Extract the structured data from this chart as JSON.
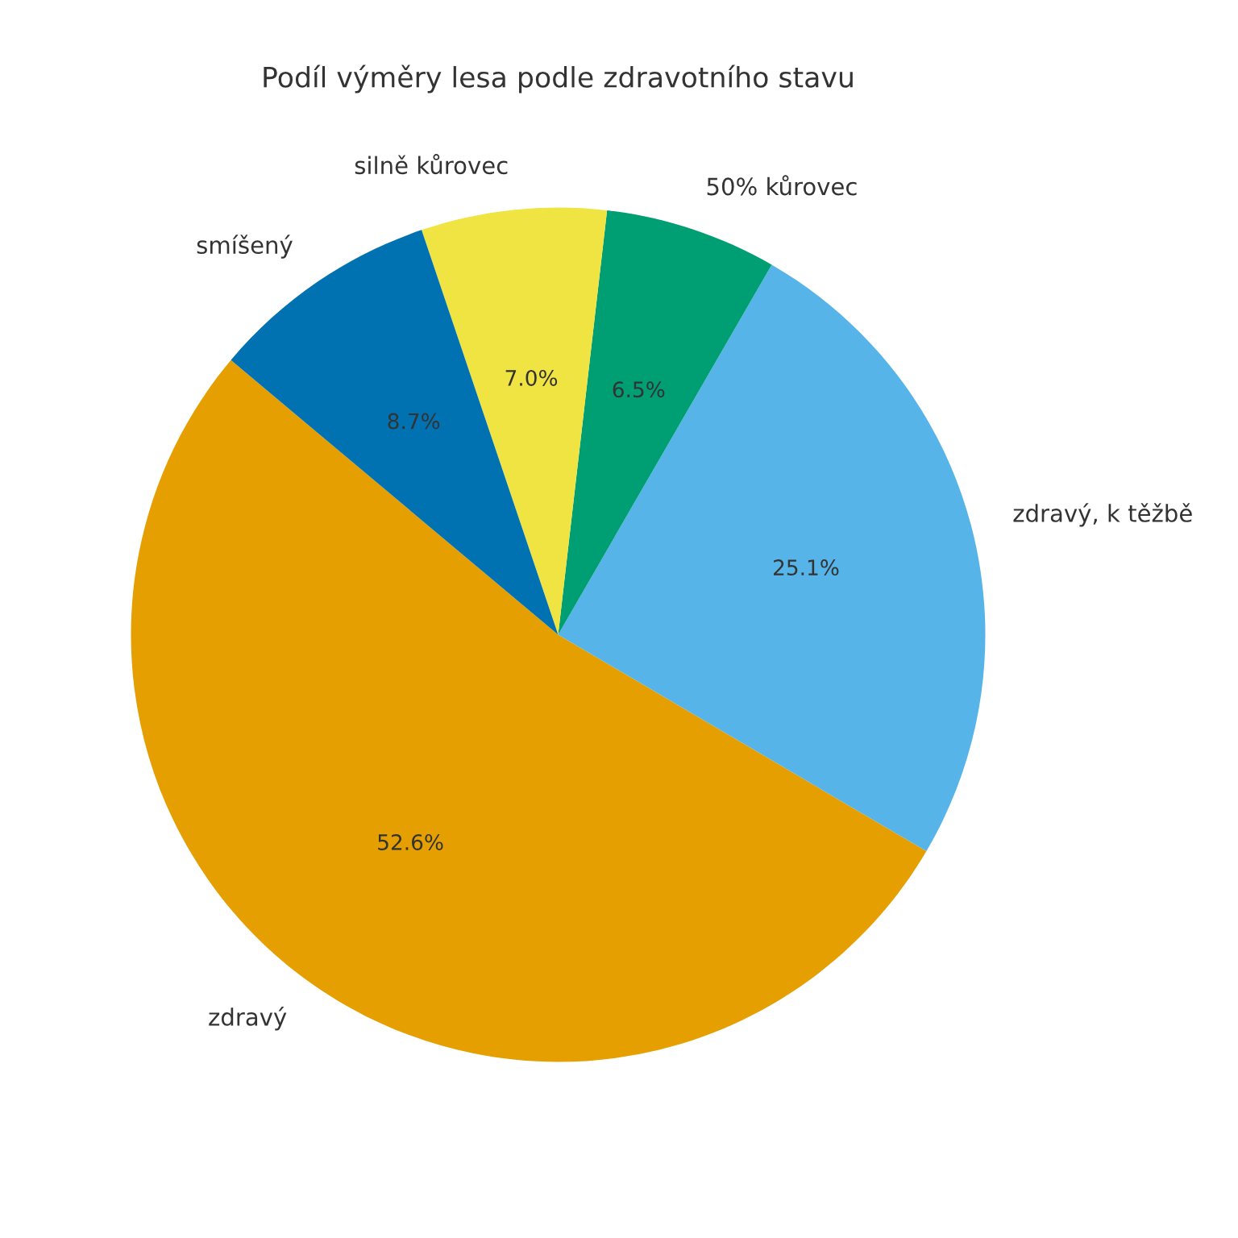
{
  "chart_data": {
    "type": "pie",
    "title": "Podíl výměry lesa podle zdravotního stavu",
    "categories": [
      "zdravý",
      "zdravý, k těžbě",
      "50% kůrovec",
      "silně kůrovec",
      "smíšený"
    ],
    "values": [
      52.6,
      25.1,
      6.5,
      7.0,
      8.7
    ],
    "value_labels": [
      "52.6%",
      "25.1%",
      "6.5%",
      "7.0%",
      "8.7%"
    ],
    "colors": [
      "#e69f00",
      "#56b4e9",
      "#009e73",
      "#f0e442",
      "#0072b2"
    ],
    "legend": false
  }
}
